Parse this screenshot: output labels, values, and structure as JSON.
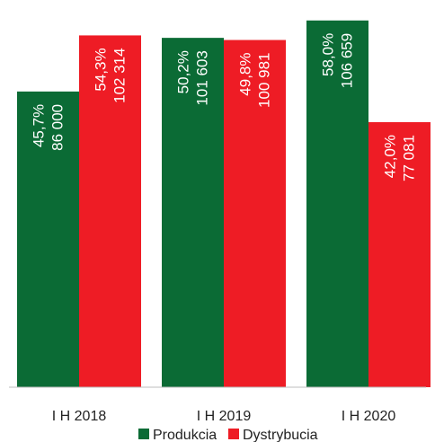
{
  "chart_data": {
    "type": "bar",
    "categories": [
      "I H 2018",
      "I H 2019",
      "I H 2020"
    ],
    "series": [
      {
        "name": "Produkcia",
        "color": "#0b6b35",
        "values": [
          86000,
          101603,
          106659
        ],
        "shares": [
          "45,7%",
          "50,2%",
          "58,0%"
        ],
        "labels": [
          "86 000",
          "101 603",
          "106 659"
        ]
      },
      {
        "name": "Dystrybucia",
        "color": "#ee1c25",
        "values": [
          102314,
          100981,
          77081
        ],
        "shares": [
          "54,3%",
          "49,8%",
          "42,0%"
        ],
        "labels": [
          "102 314",
          "100 981",
          "77 081"
        ]
      }
    ],
    "ylim": [
      0,
      110000
    ],
    "grid": false,
    "legend_position": "bottom"
  }
}
